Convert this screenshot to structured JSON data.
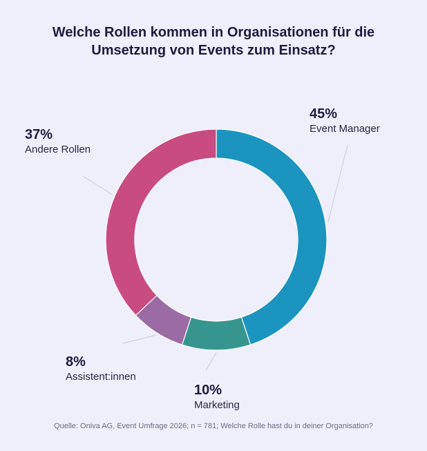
{
  "chart_data": {
    "type": "pie",
    "title_line1": "Welche Rollen kommen in Organisationen für die",
    "title_line2": "Umsetzung von Events zum Einsatz?",
    "slices": [
      {
        "label": "Event Manager",
        "value": 45,
        "value_label": "45%",
        "color": "#1c94c0"
      },
      {
        "label": "Marketing",
        "value": 10,
        "value_label": "10%",
        "color": "#36968f"
      },
      {
        "label": "Assistent:innen",
        "value": 8,
        "value_label": "8%",
        "color": "#9b6ba3"
      },
      {
        "label": "Andere Rollen",
        "value": 37,
        "value_label": "37%",
        "color": "#c84c80"
      }
    ],
    "source": "Quelle: Oniva AG, Event Umfrage 2026; n = 781; Welche Rolle hast du in deiner Organisation?"
  }
}
